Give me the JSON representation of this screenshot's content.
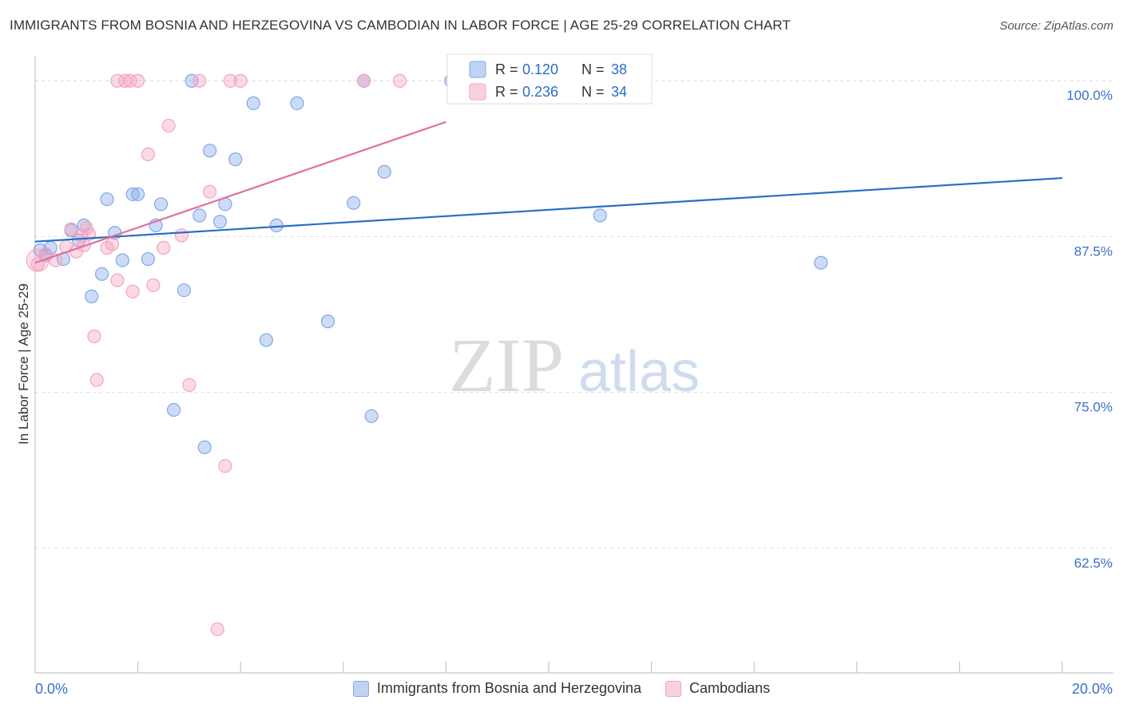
{
  "title": "IMMIGRANTS FROM BOSNIA AND HERZEGOVINA VS CAMBODIAN IN LABOR FORCE | AGE 25-29 CORRELATION CHART",
  "source": "Source: ZipAtlas.com",
  "watermark": {
    "zip": "ZIP",
    "atlas": "atlas"
  },
  "legend_labels": {
    "r": "R =",
    "n": "N ="
  },
  "chart_data": {
    "type": "scatter",
    "title": "IMMIGRANTS FROM BOSNIA AND HERZEGOVINA VS CAMBODIAN IN LABOR FORCE | AGE 25-29 CORRELATION CHART",
    "xlabel": "",
    "ylabel": "In Labor Force | Age 25-29",
    "xlim": [
      0,
      20
    ],
    "ylim": [
      52.5,
      102
    ],
    "x_tick_labels": [
      "0.0%",
      "20.0%"
    ],
    "y_ticks": [
      62.5,
      75.0,
      87.5,
      100.0
    ],
    "y_tick_labels": [
      "62.5%",
      "75.0%",
      "87.5%",
      "100.0%"
    ],
    "grid": true,
    "legend_position": "top",
    "series": [
      {
        "name": "Immigrants from Bosnia and Herzegovina",
        "color": "#7fa8e8",
        "line_color": "#2a6dc8",
        "R": "0.120",
        "N": "38",
        "trend": {
          "x0": 0,
          "y0": 87.1,
          "x1": 20,
          "y1": 92.2
        },
        "points": [
          [
            0.1,
            86.4
          ],
          [
            0.2,
            86.0
          ],
          [
            0.3,
            86.6
          ],
          [
            0.55,
            85.7
          ],
          [
            0.7,
            88.0
          ],
          [
            0.85,
            87.2
          ],
          [
            0.95,
            88.4
          ],
          [
            1.1,
            82.7
          ],
          [
            1.3,
            84.5
          ],
          [
            1.4,
            90.5
          ],
          [
            1.55,
            87.8
          ],
          [
            1.7,
            85.6
          ],
          [
            1.9,
            90.9
          ],
          [
            2.0,
            90.9
          ],
          [
            2.2,
            85.7
          ],
          [
            2.35,
            88.4
          ],
          [
            2.45,
            90.1
          ],
          [
            2.9,
            83.2
          ],
          [
            3.05,
            100.0
          ],
          [
            3.2,
            89.2
          ],
          [
            3.4,
            94.4
          ],
          [
            3.6,
            88.7
          ],
          [
            3.7,
            90.1
          ],
          [
            3.9,
            93.7
          ],
          [
            4.25,
            98.2
          ],
          [
            4.5,
            79.2
          ],
          [
            4.7,
            88.4
          ],
          [
            5.1,
            98.2
          ],
          [
            5.7,
            80.7
          ],
          [
            6.2,
            90.2
          ],
          [
            6.4,
            100.0
          ],
          [
            6.55,
            73.1
          ],
          [
            6.8,
            92.7
          ],
          [
            8.1,
            100.0
          ],
          [
            11.0,
            89.2
          ],
          [
            15.3,
            85.4
          ],
          [
            2.7,
            73.6
          ],
          [
            3.3,
            70.6
          ]
        ]
      },
      {
        "name": "Cambodians",
        "color": "#f4a3bd",
        "line_color": "#e0709a",
        "R": "0.236",
        "N": "34",
        "trend": {
          "x0": 0,
          "y0": 85.4,
          "x1": 8.0,
          "y1": 96.7
        },
        "points": [
          [
            0.05,
            85.3
          ],
          [
            0.2,
            86.1
          ],
          [
            0.4,
            85.6
          ],
          [
            0.6,
            86.7
          ],
          [
            0.7,
            88.1
          ],
          [
            0.8,
            86.3
          ],
          [
            0.9,
            87.6
          ],
          [
            1.0,
            88.2
          ],
          [
            1.05,
            87.7
          ],
          [
            1.15,
            79.5
          ],
          [
            1.2,
            76.0
          ],
          [
            1.4,
            86.6
          ],
          [
            1.5,
            86.9
          ],
          [
            1.6,
            84.0
          ],
          [
            1.75,
            100.0
          ],
          [
            1.85,
            100.0
          ],
          [
            1.9,
            83.1
          ],
          [
            2.0,
            100.0
          ],
          [
            2.2,
            94.1
          ],
          [
            2.3,
            83.6
          ],
          [
            2.5,
            86.6
          ],
          [
            2.6,
            96.4
          ],
          [
            2.85,
            87.6
          ],
          [
            3.0,
            75.6
          ],
          [
            3.2,
            100.0
          ],
          [
            3.4,
            91.1
          ],
          [
            3.55,
            56.0
          ],
          [
            3.7,
            69.1
          ],
          [
            3.8,
            100.0
          ],
          [
            4.0,
            100.0
          ],
          [
            6.4,
            100.0
          ],
          [
            7.1,
            100.0
          ],
          [
            1.6,
            100.0
          ],
          [
            0.95,
            86.8
          ]
        ]
      }
    ]
  }
}
